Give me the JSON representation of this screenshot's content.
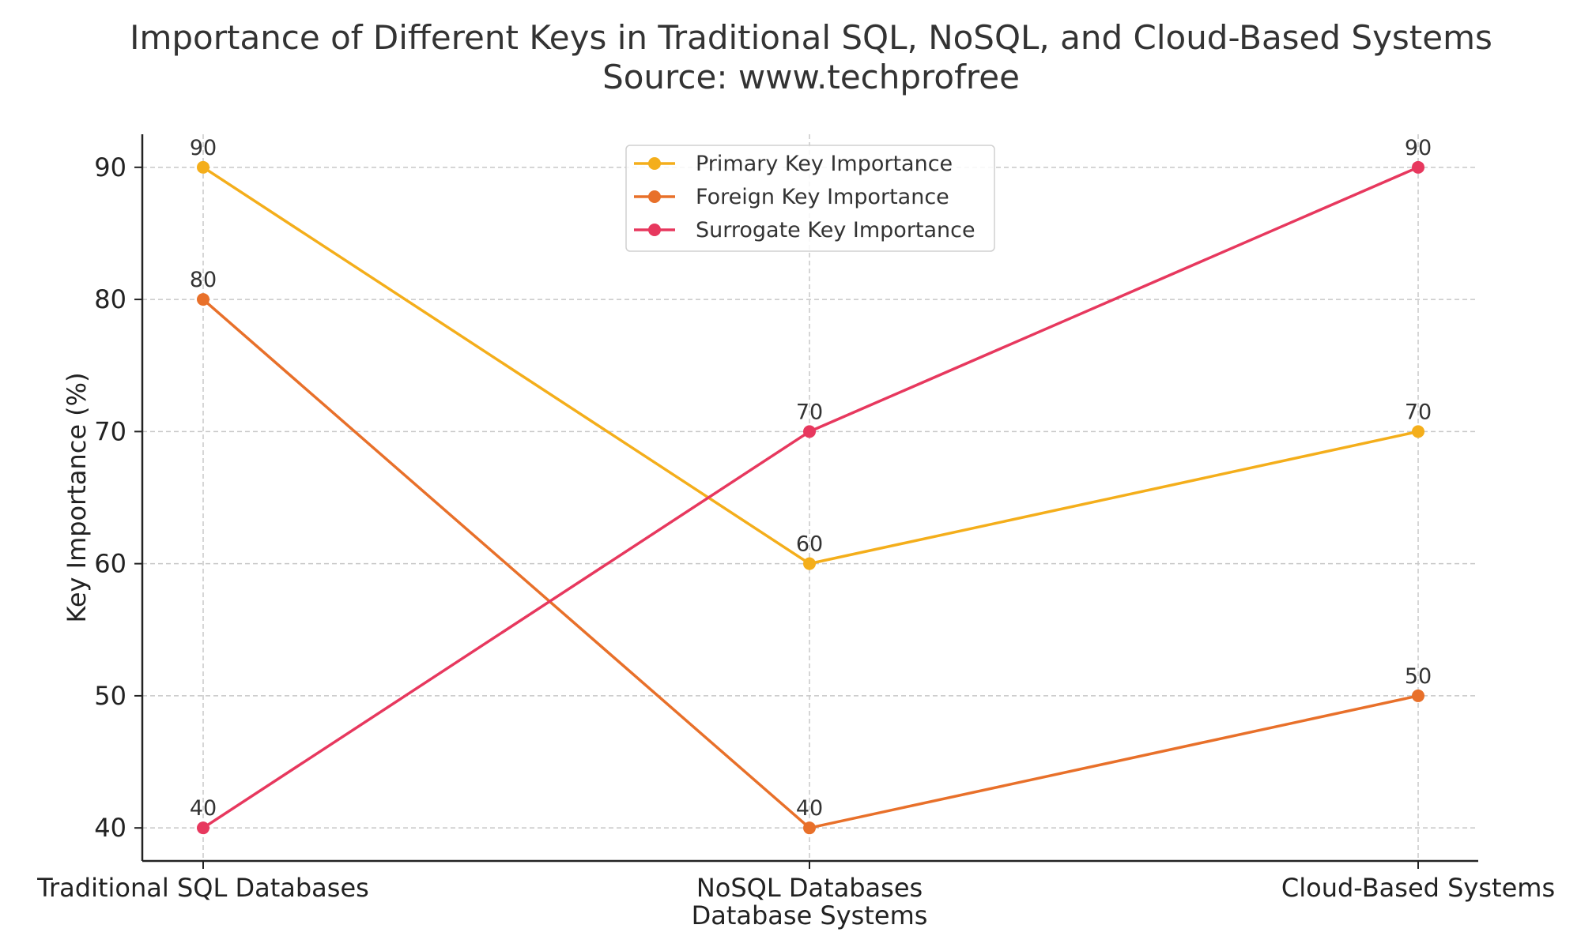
{
  "chart_data": {
    "type": "line",
    "title": "Importance of Different Keys in Traditional SQL, NoSQL, and Cloud-Based Systems",
    "subtitle": "Source: www.techprofree",
    "xlabel": "Database Systems",
    "ylabel": "Key Importance (%)",
    "categories": [
      "Traditional SQL Databases",
      "NoSQL Databases",
      "Cloud-Based Systems"
    ],
    "ylim": [
      37.5,
      92.5
    ],
    "yticks": [
      40,
      50,
      60,
      70,
      80,
      90
    ],
    "grid": true,
    "legend_position": "top-center",
    "series": [
      {
        "name": "Primary Key Importance",
        "values": [
          90,
          60,
          70
        ],
        "color": "#F4AE1B",
        "labels": [
          "90",
          "60",
          "70"
        ]
      },
      {
        "name": "Foreign Key Importance",
        "values": [
          80,
          40,
          50
        ],
        "color": "#E8702A",
        "labels": [
          "80",
          "40",
          "50"
        ]
      },
      {
        "name": "Surrogate Key Importance",
        "values": [
          40,
          70,
          90
        ],
        "color": "#E7385E",
        "labels": [
          "40",
          "70",
          "90"
        ]
      }
    ]
  }
}
